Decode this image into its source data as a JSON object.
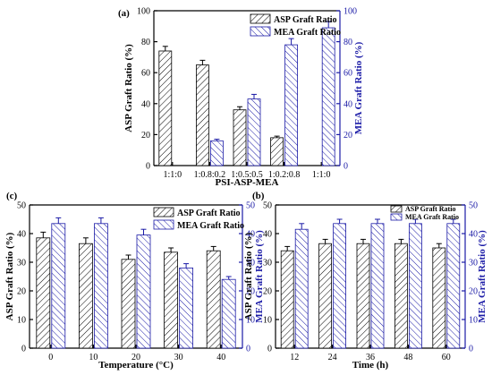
{
  "chart_data": [
    {
      "type": "bar",
      "panel_label": "(a)",
      "xlabel": "PSI-ASP-MEA",
      "ylabel": "ASP Graft Ratio (%)",
      "ylabel_right": "MEA Graft Ratio (%)",
      "ylim": [
        0,
        100
      ],
      "ylim_right": [
        0,
        100
      ],
      "yticks": [
        0,
        20,
        40,
        60,
        80,
        100
      ],
      "yticks_right": [
        0,
        20,
        40,
        60,
        80,
        100
      ],
      "categories": [
        "1:1:0",
        "1:0.8:0.2",
        "1:0.5:0.5",
        "1:0.2:0.8",
        "1:1:0"
      ],
      "legend_position": "top-right",
      "series": [
        {
          "name": "ASP Graft Ratio",
          "axis": "left",
          "values": [
            74,
            65,
            36,
            18,
            0
          ],
          "errors": [
            3,
            3,
            2,
            1,
            0
          ]
        },
        {
          "name": "MEA Graft Ratio",
          "axis": "right",
          "values": [
            0,
            16,
            43,
            78,
            89
          ],
          "errors": [
            0,
            1,
            3,
            4,
            4
          ]
        }
      ]
    },
    {
      "type": "bar",
      "panel_label": "(c)",
      "xlabel": "Temperature (°C)",
      "ylabel": "ASP Graft Ratio (%)",
      "ylabel_right": "MEA Graft Ratio (%)",
      "ylim": [
        0,
        50
      ],
      "ylim_right": [
        0,
        50
      ],
      "yticks": [
        0,
        10,
        20,
        30,
        40,
        50
      ],
      "yticks_right": [
        0,
        10,
        20,
        30,
        40,
        50
      ],
      "categories": [
        "0",
        "10",
        "20",
        "30",
        "40"
      ],
      "legend_position": "top-right",
      "series": [
        {
          "name": "ASP Graft Ratio",
          "axis": "left",
          "values": [
            38.5,
            36.5,
            31,
            33.5,
            34
          ],
          "errors": [
            2,
            2,
            1.5,
            1.5,
            1.5
          ]
        },
        {
          "name": "MEA Graft Ratio",
          "axis": "right",
          "values": [
            43.5,
            43.5,
            39.5,
            28,
            24
          ],
          "errors": [
            2,
            2,
            2,
            1.5,
            1
          ]
        }
      ]
    },
    {
      "type": "bar",
      "panel_label": "(b)",
      "xlabel": "Time (h)",
      "ylabel": "ASP Graft Ratio (%)",
      "ylabel_right": "MEA Graft Ratio (%)",
      "ylim": [
        0,
        50
      ],
      "ylim_right": [
        0,
        50
      ],
      "yticks": [
        0,
        10,
        20,
        30,
        40,
        50
      ],
      "yticks_right": [
        0,
        10,
        20,
        30,
        40,
        50
      ],
      "categories": [
        "12",
        "24",
        "36",
        "48",
        "60"
      ],
      "legend_position": "top-right",
      "series": [
        {
          "name": "ASP Graft Ratio",
          "axis": "left",
          "values": [
            34,
            36.5,
            36.5,
            36.5,
            35
          ],
          "errors": [
            1.5,
            1.5,
            1.5,
            1.5,
            1.5
          ]
        },
        {
          "name": "MEA Graft Ratio",
          "axis": "right",
          "values": [
            41.5,
            43.5,
            43.5,
            43.5,
            43.5
          ],
          "errors": [
            2,
            1.5,
            1.5,
            1.5,
            1.5
          ]
        }
      ]
    }
  ]
}
